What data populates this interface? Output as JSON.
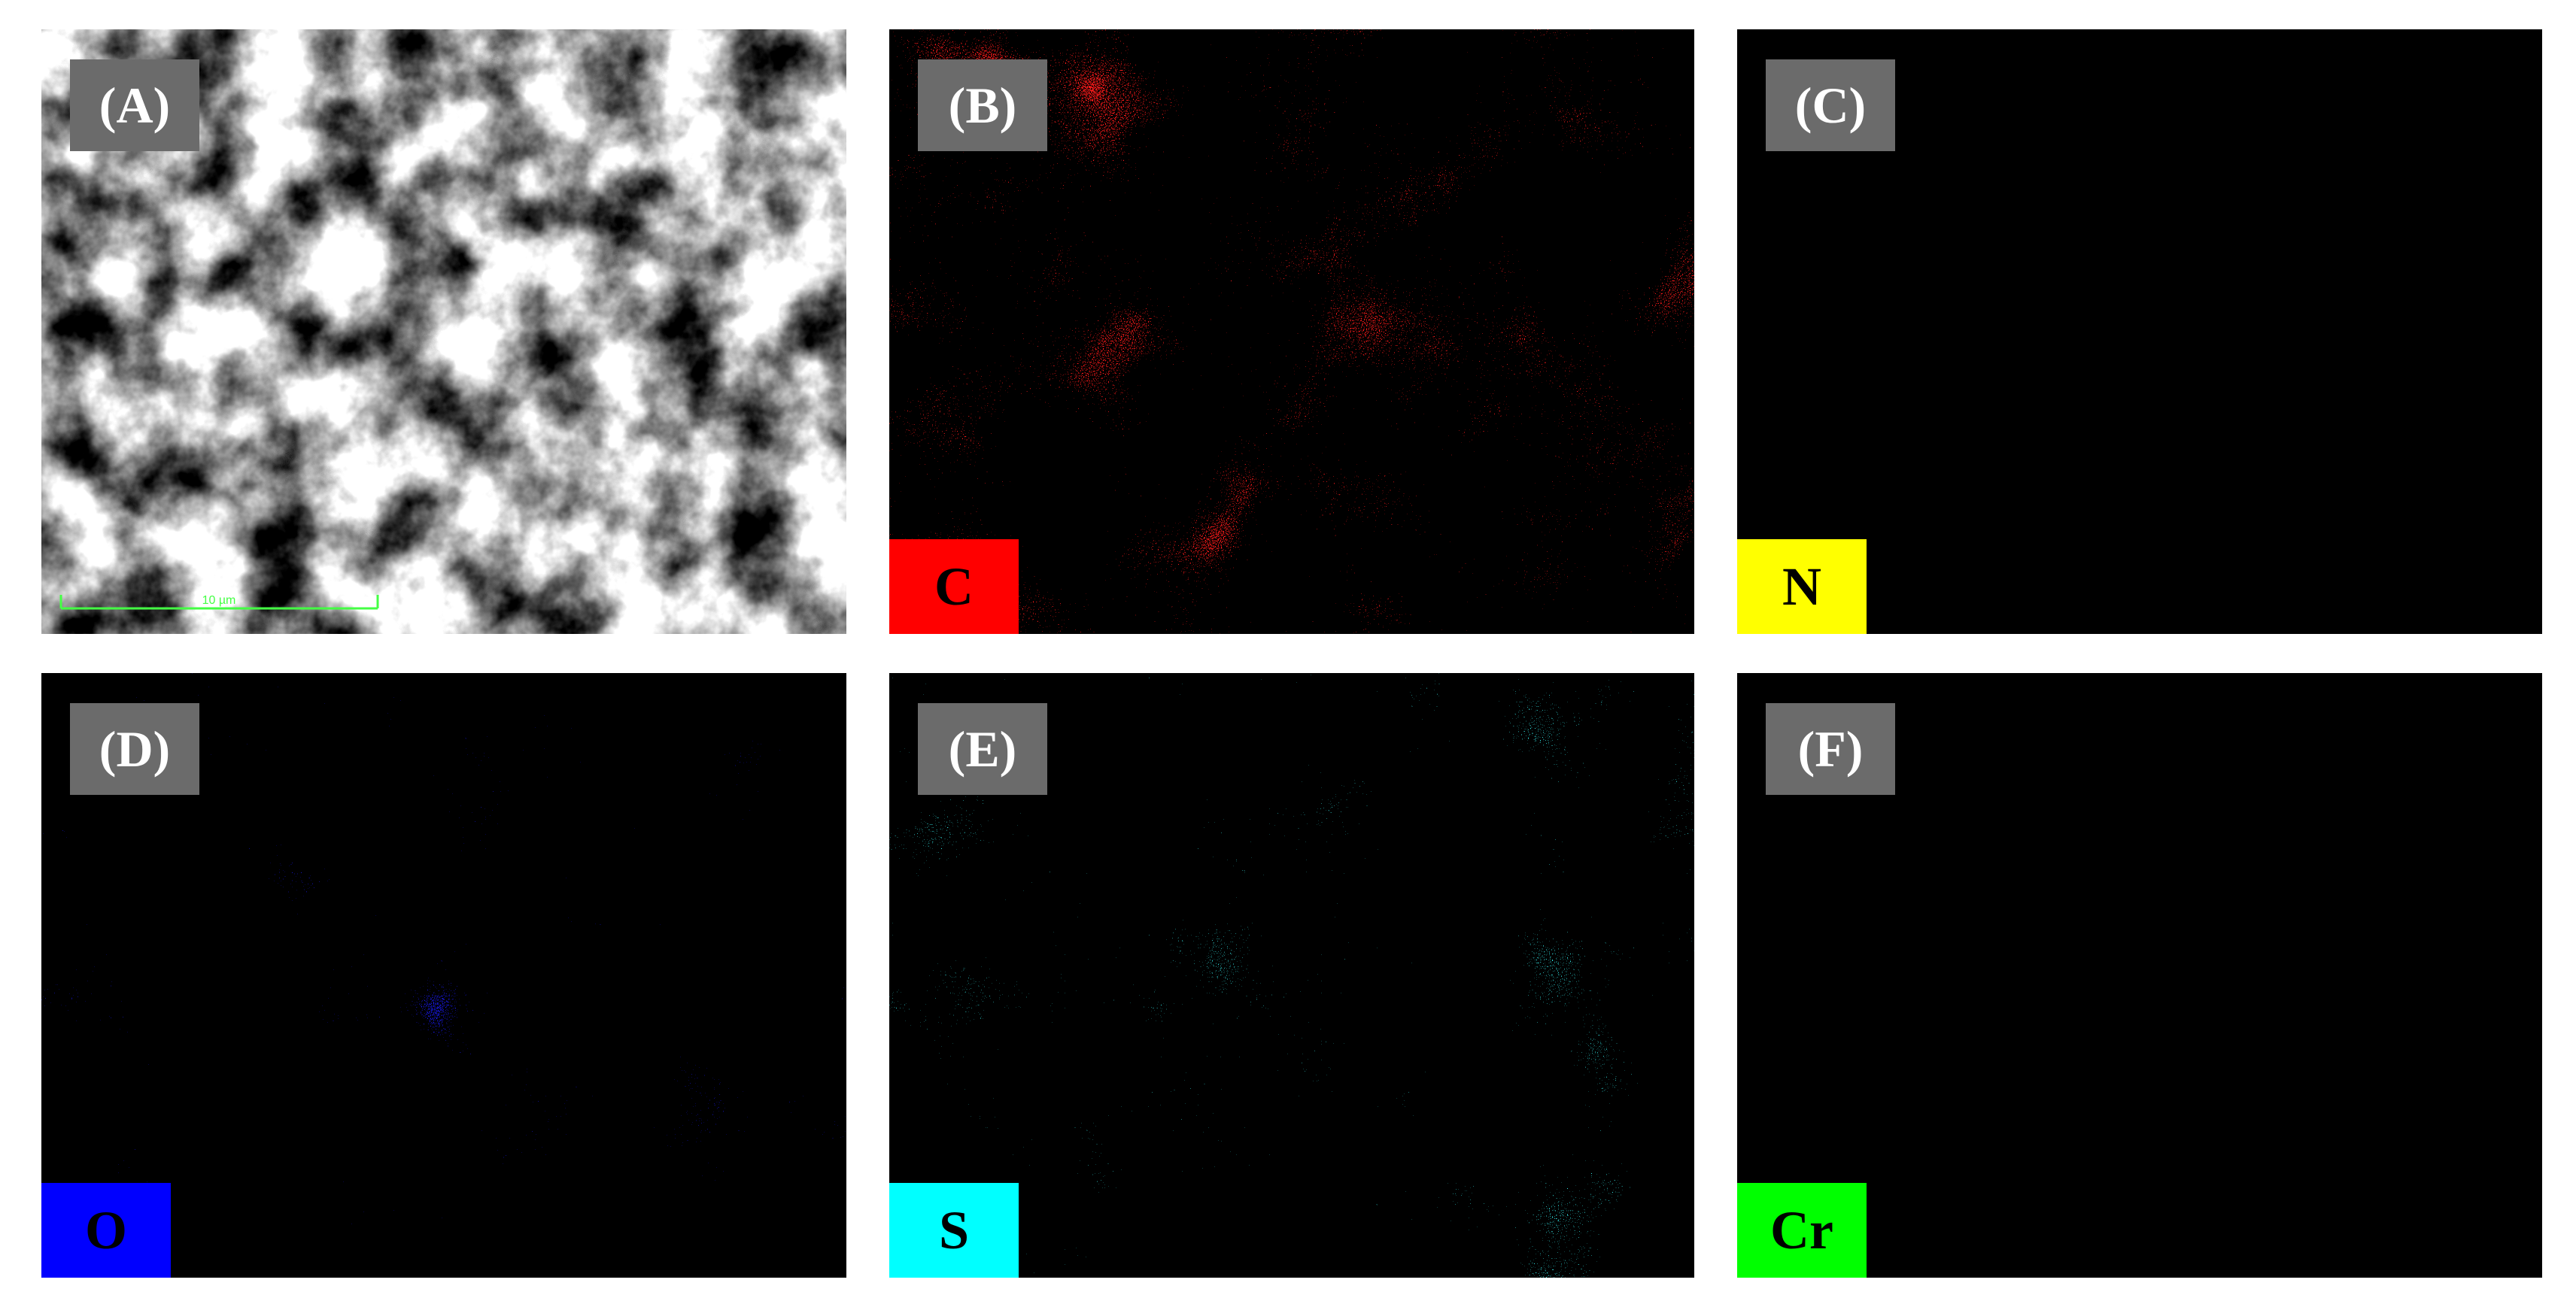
{
  "panels": [
    {
      "label": "(A)",
      "scale_bar": "10 µm"
    },
    {
      "label": "(B)",
      "element": "C"
    },
    {
      "label": "(C)",
      "element": "N"
    },
    {
      "label": "(D)",
      "element": "O"
    },
    {
      "label": "(E)",
      "element": "S"
    },
    {
      "label": "(F)",
      "element": "Cr"
    }
  ]
}
